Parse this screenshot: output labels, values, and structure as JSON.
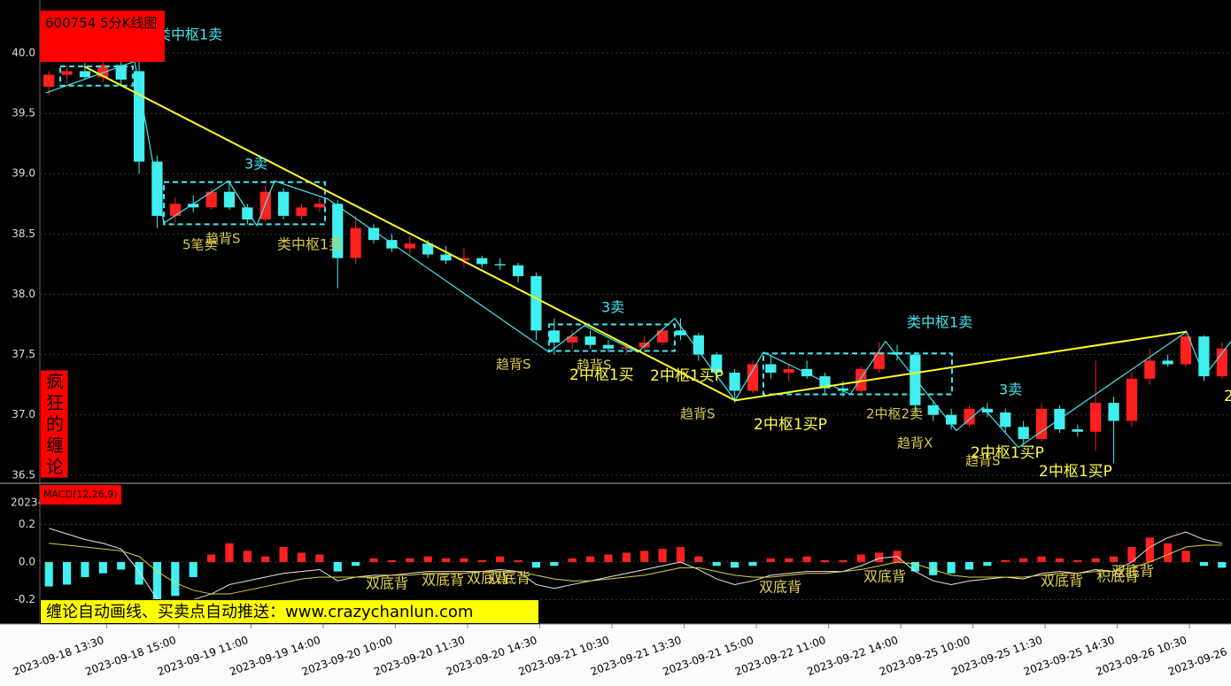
{
  "chart_data": [
    {
      "type": "candlestick",
      "title": "600754 5分K线图",
      "side_label": "疯狂的缠论",
      "footer": "缠论自动画线、买卖点自动推送：www.crazychanlun.com",
      "up_color": "#ff2020",
      "down_color": "#40f0f0",
      "grid": true,
      "open": [
        39.72,
        39.82,
        39.85,
        39.8,
        39.9,
        39.85,
        39.1,
        38.65,
        38.75,
        38.72,
        38.85,
        38.72,
        38.62,
        38.85,
        38.65,
        38.72,
        38.75,
        38.3,
        38.55,
        38.45,
        38.38,
        38.42,
        38.33,
        38.28,
        38.3,
        38.25,
        38.24,
        38.15,
        37.7,
        37.6,
        37.65,
        37.58,
        37.55,
        37.56,
        37.6,
        37.7,
        37.66,
        37.5,
        37.35,
        37.2,
        37.42,
        37.35,
        37.38,
        37.32,
        37.22,
        37.2,
        37.38,
        37.52,
        37.5,
        37.08,
        37.0,
        36.92,
        37.05,
        37.02,
        36.9,
        36.8,
        37.05,
        36.88,
        36.86,
        37.1,
        36.95,
        37.3,
        37.45,
        37.42,
        37.65,
        37.32
      ],
      "high": [
        39.85,
        39.9,
        39.92,
        39.95,
        39.95,
        39.98,
        39.15,
        38.8,
        38.82,
        38.88,
        38.92,
        38.75,
        38.9,
        38.88,
        38.75,
        38.8,
        38.78,
        38.65,
        38.58,
        38.5,
        38.48,
        38.45,
        38.4,
        38.38,
        38.32,
        38.3,
        38.26,
        38.18,
        37.8,
        37.7,
        37.7,
        37.62,
        37.6,
        37.65,
        37.72,
        37.8,
        37.68,
        37.52,
        37.38,
        37.45,
        37.5,
        37.42,
        37.45,
        37.35,
        37.28,
        37.4,
        37.6,
        37.58,
        37.52,
        37.12,
        37.05,
        37.08,
        37.1,
        37.05,
        36.95,
        37.1,
        37.08,
        36.92,
        37.45,
        37.15,
        37.35,
        37.55,
        37.5,
        37.7,
        37.66,
        37.6
      ],
      "low": [
        39.65,
        39.75,
        39.78,
        39.76,
        39.74,
        39.0,
        38.55,
        38.6,
        38.68,
        38.7,
        38.7,
        38.58,
        38.6,
        38.62,
        38.62,
        38.68,
        38.05,
        38.25,
        38.42,
        38.35,
        38.33,
        38.3,
        38.25,
        38.22,
        38.22,
        38.2,
        38.1,
        37.62,
        37.5,
        37.55,
        37.55,
        37.52,
        37.5,
        37.52,
        37.58,
        37.62,
        37.45,
        37.3,
        37.1,
        37.18,
        37.3,
        37.28,
        37.3,
        37.18,
        37.15,
        37.18,
        37.35,
        37.45,
        37.0,
        36.95,
        36.88,
        36.9,
        36.98,
        36.85,
        36.75,
        36.78,
        36.85,
        36.82,
        36.7,
        36.6,
        36.9,
        37.25,
        37.4,
        37.4,
        37.28,
        37.3
      ],
      "close": [
        39.82,
        39.85,
        39.8,
        39.9,
        39.78,
        39.1,
        38.65,
        38.75,
        38.72,
        38.85,
        38.72,
        38.62,
        38.85,
        38.65,
        38.72,
        38.75,
        38.3,
        38.55,
        38.45,
        38.38,
        38.42,
        38.33,
        38.28,
        38.3,
        38.25,
        38.24,
        38.15,
        37.7,
        37.6,
        37.65,
        37.58,
        37.55,
        37.56,
        37.6,
        37.7,
        37.66,
        37.5,
        37.35,
        37.2,
        37.42,
        37.35,
        37.38,
        37.32,
        37.22,
        37.2,
        37.38,
        37.52,
        37.5,
        37.08,
        37.0,
        36.92,
        37.05,
        37.02,
        36.9,
        36.8,
        37.05,
        36.88,
        36.86,
        37.1,
        36.95,
        37.3,
        37.45,
        37.42,
        37.65,
        37.32,
        37.55
      ],
      "xlim": [
        0,
        66
      ],
      "ylim": [
        36.44,
        40.44
      ],
      "xticks": [
        {
          "value": 3.7,
          "label": "2023-09-18 13:30"
        },
        {
          "value": 7.7,
          "label": "2023-09-18 15:00"
        },
        {
          "value": 11.7,
          "label": "2023-09-19 11:00"
        },
        {
          "value": 15.7,
          "label": "2023-09-19 14:00"
        },
        {
          "value": 19.7,
          "label": "2023-09-20 10:00"
        },
        {
          "value": 23.7,
          "label": "2023-09-20 11:30"
        },
        {
          "value": 27.7,
          "label": "2023-09-20 14:30"
        },
        {
          "value": 31.7,
          "label": "2023-09-21 10:30"
        },
        {
          "value": 35.7,
          "label": "2023-09-21 13:30"
        },
        {
          "value": 39.7,
          "label": "2023-09-21 15:00"
        },
        {
          "value": 43.7,
          "label": "2023-09-22 11:00"
        },
        {
          "value": 47.7,
          "label": "2023-09-22 14:00"
        },
        {
          "value": 51.7,
          "label": "2023-09-25 10:00"
        },
        {
          "value": 55.7,
          "label": "2023-09-25 11:30"
        },
        {
          "value": 59.7,
          "label": "2023-09-25 14:30"
        },
        {
          "value": 63.7,
          "label": "2023-09-26 10:30"
        },
        {
          "value": 67.7,
          "label": "2023-09-26"
        }
      ],
      "yticks": [
        {
          "value": 40,
          "label": "40.0"
        },
        {
          "value": 39.5,
          "label": "39.5"
        },
        {
          "value": 39,
          "label": "39.0"
        },
        {
          "value": 38.5,
          "label": "38.5"
        },
        {
          "value": 38,
          "label": "38.0"
        },
        {
          "value": 37.5,
          "label": "37.5"
        },
        {
          "value": 37,
          "label": "37.0"
        },
        {
          "value": 36.5,
          "label": "36.5"
        }
      ],
      "strokes": {
        "color": "#40e8f0",
        "x": [
          0.34,
          5.25,
          6.87,
          10.45,
          12.02,
          13.0,
          15.95,
          28.21,
          30.18,
          33.12,
          35.18,
          38.52,
          40.09,
          44.9,
          46.86,
          50.78,
          52.26,
          54.22,
          63.54,
          64.52,
          66
        ],
        "y": [
          39.67,
          39.93,
          38.59,
          38.94,
          38.57,
          38.94,
          38.79,
          37.52,
          37.74,
          37.52,
          37.8,
          37.12,
          37.52,
          37.17,
          37.61,
          36.87,
          37.06,
          36.73,
          37.69,
          37.32,
          37.61
        ]
      },
      "segments": {
        "color": "#ffff20",
        "x": [
          2.45,
          38.52,
          63.54
        ],
        "y": [
          39.89,
          37.12,
          37.69
        ]
      },
      "pivots": {
        "color": "#40e8f0",
        "boxes": [
          {
            "x0": 1.13,
            "x1": 5.15,
            "low": 39.73,
            "high": 39.89
          },
          {
            "x0": 6.87,
            "x1": 15.8,
            "low": 38.58,
            "high": 38.93
          },
          {
            "x0": 28.21,
            "x1": 35.18,
            "low": 37.53,
            "high": 37.75
          },
          {
            "x0": 40.09,
            "x1": 50.54,
            "low": 37.17,
            "high": 37.51
          }
        ]
      },
      "annotations": [
        {
          "text": "类中枢1卖",
          "color": "#40e8f0"
        },
        {
          "text": "3卖",
          "color": "#40e8f0"
        },
        {
          "text": "5笔卖",
          "color": "#d8c848"
        },
        {
          "text": "趋背S",
          "color": "#d8c848"
        },
        {
          "text": "类中枢1卖",
          "color": "#d8c848"
        },
        {
          "text": "3卖",
          "color": "#40e8f0"
        },
        {
          "text": "趋背S",
          "color": "#d8c848"
        },
        {
          "text": "趋背S",
          "color": "#d8c848"
        },
        {
          "text": "2中枢1买",
          "color": "#ffff44"
        },
        {
          "text": "2中枢1买P",
          "color": "#ffff44"
        },
        {
          "text": "趋背S",
          "color": "#d8c848"
        },
        {
          "text": "2中枢1买P",
          "color": "#ffff44"
        },
        {
          "text": "类中枢1卖",
          "color": "#40e8f0"
        },
        {
          "text": "2中枢2卖",
          "color": "#d8c848"
        },
        {
          "text": "趋背X",
          "color": "#d8c848"
        },
        {
          "text": "3卖",
          "color": "#40e8f0"
        },
        {
          "text": "趋背S",
          "color": "#d8c848"
        },
        {
          "text": "2中枢1买P",
          "color": "#ffff44"
        },
        {
          "text": "2中枢1买P",
          "color": "#ffff44"
        },
        {
          "text": "2",
          "color": "#ffff44"
        }
      ]
    },
    {
      "type": "macd",
      "title": "MACD(12,26,9)",
      "cut_label": "2023-",
      "grid": true,
      "histogram": {
        "up_color": "#ff2020",
        "down_color": "#40f0f0",
        "values": [
          -0.13,
          -0.12,
          -0.08,
          -0.06,
          -0.04,
          -0.12,
          -0.25,
          -0.18,
          -0.08,
          0.04,
          0.1,
          0.06,
          0.03,
          0.08,
          0.05,
          0.04,
          -0.05,
          -0.02,
          0.02,
          0.01,
          0.02,
          0.03,
          0.02,
          0.02,
          0.01,
          0.03,
          0.01,
          -0.03,
          -0.02,
          0.02,
          0.03,
          0.04,
          0.05,
          0.06,
          0.07,
          0.08,
          0.03,
          -0.02,
          -0.03,
          -0.02,
          0.02,
          0.02,
          0.03,
          0.01,
          0.01,
          0.04,
          0.05,
          0.06,
          -0.05,
          -0.07,
          -0.06,
          -0.04,
          -0.02,
          0.01,
          0.02,
          0.03,
          0.02,
          0.01,
          0.02,
          0.03,
          0.08,
          0.13,
          0.1,
          0.06,
          -0.02,
          -0.03
        ]
      },
      "dif": {
        "color": "#e8e8e8",
        "values": [
          0.18,
          0.15,
          0.12,
          0.1,
          0.07,
          -0.05,
          -0.2,
          -0.22,
          -0.2,
          -0.17,
          -0.12,
          -0.1,
          -0.08,
          -0.06,
          -0.05,
          -0.04,
          -0.1,
          -0.08,
          -0.07,
          -0.07,
          -0.06,
          -0.05,
          -0.05,
          -0.05,
          -0.05,
          -0.04,
          -0.05,
          -0.12,
          -0.14,
          -0.12,
          -0.1,
          -0.08,
          -0.06,
          -0.04,
          -0.02,
          0.0,
          -0.04,
          -0.09,
          -0.12,
          -0.1,
          -0.07,
          -0.06,
          -0.05,
          -0.05,
          -0.05,
          -0.02,
          0.02,
          0.03,
          -0.05,
          -0.1,
          -0.12,
          -0.1,
          -0.09,
          -0.08,
          -0.09,
          -0.06,
          -0.05,
          -0.06,
          -0.04,
          -0.05,
          0.0,
          0.08,
          0.13,
          0.16,
          0.12,
          0.1
        ]
      },
      "dea": {
        "color": "#e0d040",
        "values": [
          0.1,
          0.09,
          0.08,
          0.07,
          0.06,
          0.03,
          -0.05,
          -0.11,
          -0.15,
          -0.17,
          -0.17,
          -0.15,
          -0.13,
          -0.11,
          -0.09,
          -0.08,
          -0.08,
          -0.08,
          -0.08,
          -0.07,
          -0.07,
          -0.06,
          -0.06,
          -0.06,
          -0.05,
          -0.05,
          -0.05,
          -0.07,
          -0.09,
          -0.1,
          -0.1,
          -0.09,
          -0.08,
          -0.07,
          -0.05,
          -0.03,
          -0.03,
          -0.05,
          -0.07,
          -0.08,
          -0.08,
          -0.07,
          -0.06,
          -0.06,
          -0.05,
          -0.04,
          -0.02,
          0.0,
          -0.01,
          -0.04,
          -0.07,
          -0.08,
          -0.08,
          -0.08,
          -0.08,
          -0.07,
          -0.06,
          -0.06,
          -0.05,
          -0.05,
          -0.03,
          0.0,
          0.04,
          0.08,
          0.09,
          0.09
        ]
      },
      "ylim": [
        -0.33,
        0.41
      ],
      "yticks": [
        0.2,
        {
          "value": 0,
          "label": "0.0"
        },
        -0.2
      ],
      "annotations": [
        {
          "text": "双底背",
          "color": "#e0d050"
        },
        {
          "text": "双底背",
          "color": "#e0d050"
        },
        {
          "text": "双底背",
          "color": "#e0d050"
        },
        {
          "text": "双底背",
          "color": "#e0d050"
        },
        {
          "text": "双底背",
          "color": "#e0d050"
        },
        {
          "text": "双底背",
          "color": "#e0d050"
        },
        {
          "text": "双底背",
          "color": "#e0d050"
        },
        {
          "text": "积底背",
          "color": "#e0d050"
        },
        {
          "text": "双底背",
          "color": "#e0d050"
        }
      ]
    }
  ]
}
